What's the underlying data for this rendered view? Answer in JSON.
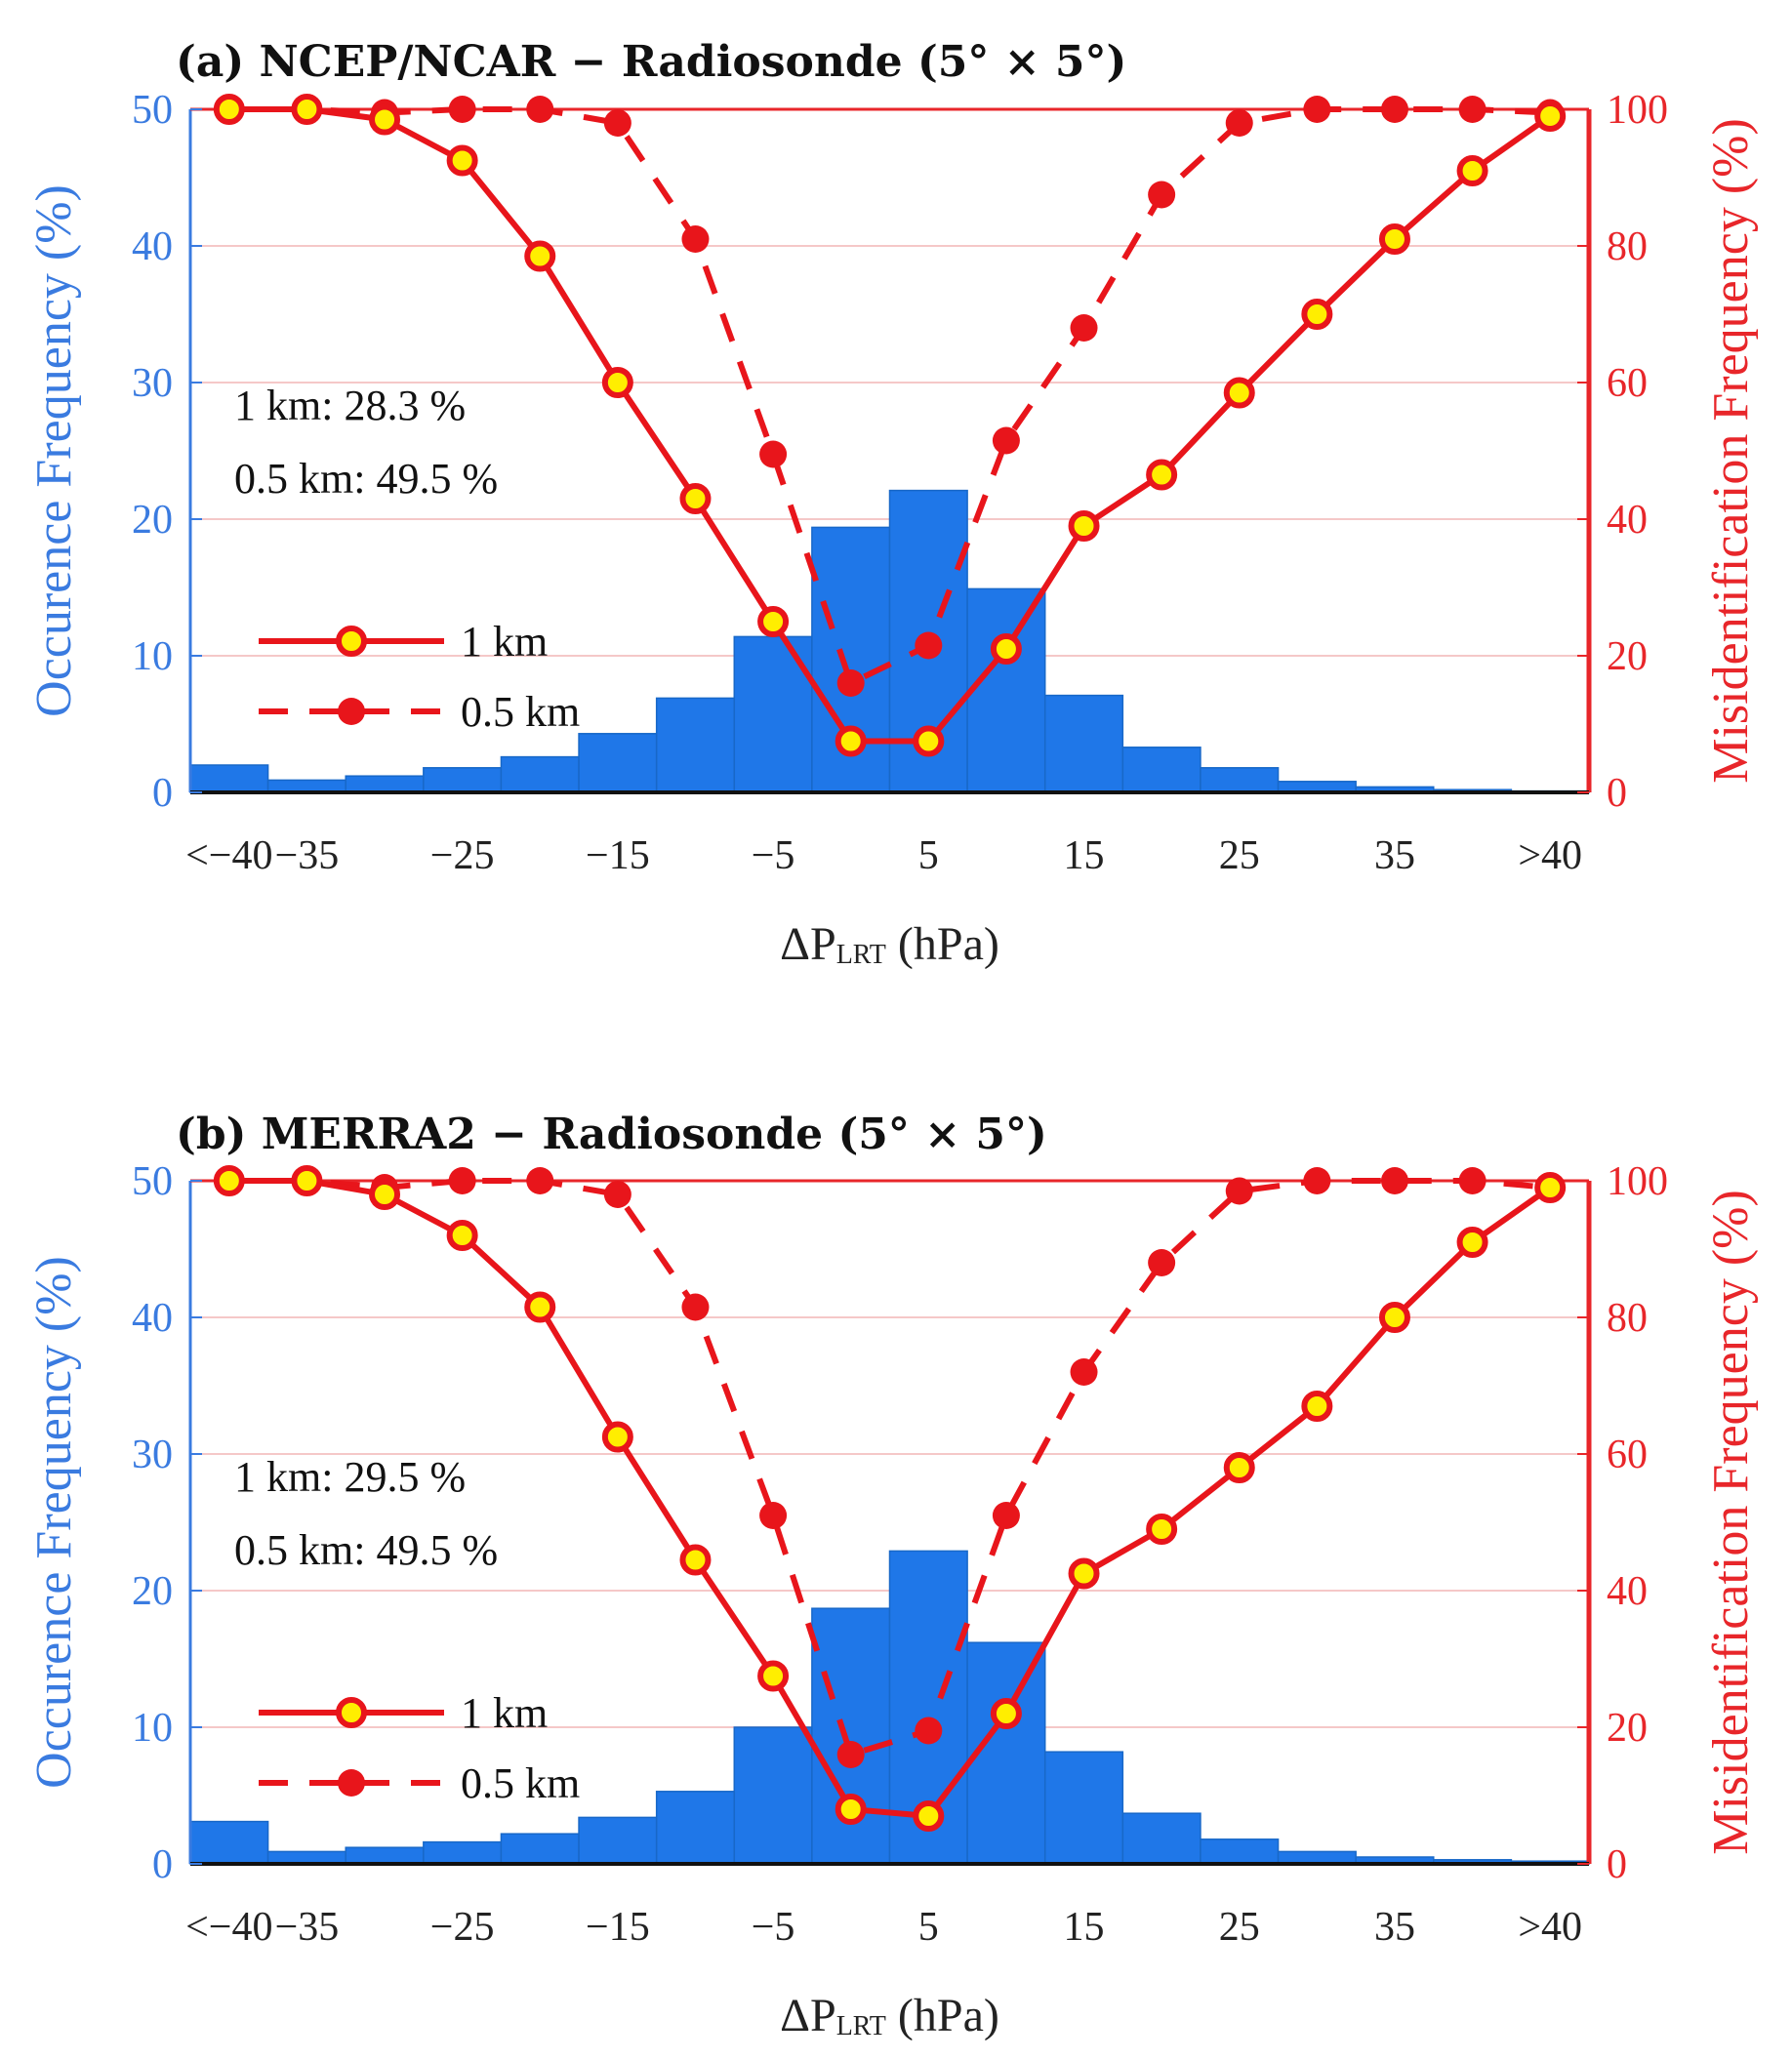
{
  "chart_data": [
    {
      "type": "bar",
      "title": "(a) NCEP/NCAR − Radiosonde (5° × 5°)",
      "xlabel": "ΔP",
      "xlabel_sub": "LRT",
      "xlabel_unit": "(hPa)",
      "ylabel_left": "Occurence Frequency (%)",
      "ylabel_right": "Misidentification Frequency (%)",
      "ylim_left": [
        0,
        50
      ],
      "ylim_right": [
        0,
        100
      ],
      "yticks_left": [
        "0",
        "10",
        "20",
        "30",
        "40",
        "50"
      ],
      "yticks_right": [
        "0",
        "20",
        "40",
        "60",
        "80",
        "100"
      ],
      "xticks": [
        "<−40",
        "−35",
        "−25",
        "−15",
        "−5",
        "5",
        "15",
        "25",
        "35",
        ">40"
      ],
      "bar_values": [
        2.0,
        0.9,
        1.2,
        1.8,
        2.6,
        4.3,
        6.9,
        11.4,
        19.4,
        22.1,
        14.9,
        7.1,
        3.3,
        1.8,
        0.8,
        0.4,
        0.2,
        0.1
      ],
      "series": [
        {
          "name": "1 km",
          "style": "solid",
          "values": [
            100,
            100,
            98.5,
            92.5,
            78.5,
            60,
            43,
            25,
            7.5,
            7.5,
            21,
            39,
            46.5,
            58.5,
            70,
            81,
            91,
            99
          ]
        },
        {
          "name": "0.5 km",
          "style": "dashed",
          "values": [
            100,
            100,
            99.5,
            100,
            100,
            98,
            81,
            49.5,
            16,
            21.5,
            51.5,
            68,
            87.5,
            98,
            100,
            100,
            100,
            99.5
          ]
        }
      ],
      "annotations": [
        "1 km: 28.3 %",
        "0.5 km: 49.5 %"
      ],
      "legend": [
        "1 km",
        "0.5 km"
      ],
      "colors": {
        "bar": "#1f77e8",
        "line": "#e8151b",
        "marker_face": "#ffee00",
        "grid": "#f5c8c8",
        "left_axis": "#3a7be0",
        "right_axis": "#e8262a"
      }
    },
    {
      "type": "bar",
      "title": "(b) MERRA2 − Radiosonde (5° × 5°)",
      "xlabel": "ΔP",
      "xlabel_sub": "LRT",
      "xlabel_unit": "(hPa)",
      "ylabel_left": "Occurence Frequency (%)",
      "ylabel_right": "Misidentification Frequency (%)",
      "ylim_left": [
        0,
        50
      ],
      "ylim_right": [
        0,
        100
      ],
      "yticks_left": [
        "0",
        "10",
        "20",
        "30",
        "40",
        "50"
      ],
      "yticks_right": [
        "0",
        "20",
        "40",
        "60",
        "80",
        "100"
      ],
      "xticks": [
        "<−40",
        "−35",
        "−25",
        "−15",
        "−5",
        "5",
        "15",
        "25",
        "35",
        ">40"
      ],
      "bar_values": [
        3.1,
        0.9,
        1.2,
        1.6,
        2.2,
        3.4,
        5.3,
        10.0,
        18.7,
        22.9,
        16.2,
        8.2,
        3.7,
        1.8,
        0.9,
        0.5,
        0.3,
        0.2
      ],
      "series": [
        {
          "name": "1 km",
          "style": "solid",
          "values": [
            100,
            100,
            98,
            92,
            81.5,
            62.5,
            44.5,
            27.5,
            8,
            7,
            22,
            42.5,
            49,
            58,
            67,
            80,
            91,
            99
          ]
        },
        {
          "name": "0.5 km",
          "style": "dashed",
          "values": [
            100,
            100,
            99,
            100,
            100,
            98,
            81.5,
            51,
            16,
            19.5,
            51,
            72,
            88,
            98.5,
            100,
            100,
            100,
            99
          ]
        }
      ],
      "annotations": [
        "1 km: 29.5 %",
        "0.5 km: 49.5 %"
      ],
      "legend": [
        "1 km",
        "0.5 km"
      ],
      "colors": {
        "bar": "#1f77e8",
        "line": "#e8151b",
        "marker_face": "#ffee00",
        "grid": "#f5c8c8",
        "left_axis": "#3a7be0",
        "right_axis": "#e8262a"
      }
    }
  ]
}
